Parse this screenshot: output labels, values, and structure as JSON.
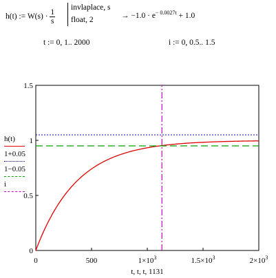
{
  "equations": {
    "h_def_left": "h(t) := W(s) ·",
    "h_frac_num": "1",
    "h_frac_den": "s",
    "op_line1": "invlaplace, s",
    "op_line2": "float, 2",
    "arrow": "→",
    "result_a": "−1.0 · e",
    "result_exp": "− 0.0027t",
    "result_b": " + 1.0",
    "t_range": "t := 0, 1.. 2000",
    "i_range": "i := 0, 0.5.. 1.5"
  },
  "legend": [
    {
      "label": "h(t)",
      "color": "#e00000",
      "style": "solid"
    },
    {
      "label": "1+0.05",
      "color": "#0000a0",
      "style": "dotted"
    },
    {
      "label": "1−0.05",
      "color": "#00a000",
      "style": "dashed"
    },
    {
      "label": "i",
      "color": "#c000c0",
      "style": "dashdot"
    }
  ],
  "chart_data": {
    "type": "line",
    "xlabel": "t, t, t, 1131",
    "x_range": [
      0,
      2000
    ],
    "y_range": [
      0,
      1.5
    ],
    "y_ticks": [
      {
        "value": 0,
        "label": "0"
      },
      {
        "value": 0.5,
        "label": "0.5"
      },
      {
        "value": 1,
        "label": "1"
      },
      {
        "value": 1.5,
        "label": "1.5"
      }
    ],
    "x_ticks": [
      {
        "value": 0,
        "label": "0",
        "sup": ""
      },
      {
        "value": 500,
        "label": "500",
        "sup": ""
      },
      {
        "value": 1000,
        "label": "1×10",
        "sup": "3"
      },
      {
        "value": 1500,
        "label": "1.5×10",
        "sup": "3"
      },
      {
        "value": 2000,
        "label": "2×10",
        "sup": "3"
      }
    ],
    "series": [
      {
        "name": "h(t)",
        "formula": "1 - exp(-0.0027 t)",
        "color": "#e00000"
      },
      {
        "name": "1+0.05",
        "y": 1.05,
        "color": "#0000a0"
      },
      {
        "name": "1−0.05",
        "y": 0.95,
        "color": "#00a000"
      },
      {
        "name": "i",
        "x": 1131,
        "y": [
          0,
          1.5
        ],
        "color": "#c000c0"
      }
    ]
  }
}
